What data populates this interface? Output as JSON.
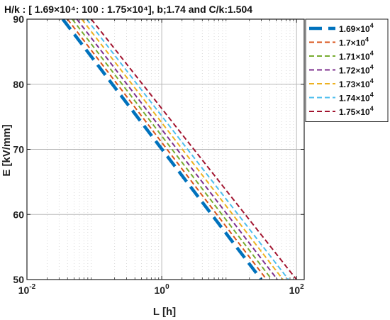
{
  "chart_data": {
    "type": "line",
    "title": "H/k : [ 1.69×10⁴: 100 : 1.75×10⁴],  b;1.74 and C/k:1.504",
    "xlabel": "L [h]",
    "ylabel": "E [kV/mm]",
    "xscale": "log",
    "xlim": [
      0.01,
      130
    ],
    "ylim": [
      50,
      90
    ],
    "x_ticks": [
      {
        "value": 0.01,
        "base": "10",
        "exp": "-2"
      },
      {
        "value": 1,
        "base": "10",
        "exp": "0"
      },
      {
        "value": 100,
        "base": "10",
        "exp": "2"
      }
    ],
    "y_ticks": [
      50,
      60,
      70,
      80,
      90
    ],
    "grid": true,
    "legend_position": "outside-top-right",
    "series": [
      {
        "name": "1.69×10⁴",
        "base": "1.69×10",
        "exp": "4",
        "color": "#0072BD",
        "width": 4.5,
        "dash": "18,9",
        "E": [
          90,
          50
        ],
        "L": [
          0.034,
          30.0
        ]
      },
      {
        "name": "1.7×10⁴",
        "base": "1.7×10",
        "exp": "4",
        "color": "#D95319",
        "width": 2,
        "dash": "7,4",
        "E": [
          90,
          50
        ],
        "L": [
          0.04,
          36.0
        ]
      },
      {
        "name": "1.71×10⁴",
        "base": "1.71×10",
        "exp": "4",
        "color": "#77AC30",
        "width": 2,
        "dash": "7,4",
        "E": [
          90,
          50
        ],
        "L": [
          0.047,
          43.0
        ]
      },
      {
        "name": "1.72×10⁴",
        "base": "1.72×10",
        "exp": "4",
        "color": "#7E2F8E",
        "width": 2,
        "dash": "7,4",
        "E": [
          90,
          50
        ],
        "L": [
          0.055,
          52.0
        ]
      },
      {
        "name": "1.73×10⁴",
        "base": "1.73×10",
        "exp": "4",
        "color": "#EDB120",
        "width": 2,
        "dash": "7,4",
        "E": [
          90,
          50
        ],
        "L": [
          0.065,
          63.0
        ]
      },
      {
        "name": "1.74×10⁴",
        "base": "1.74×10",
        "exp": "4",
        "color": "#4DBEEE",
        "width": 2,
        "dash": "7,4",
        "E": [
          90,
          50
        ],
        "L": [
          0.077,
          76.0
        ]
      },
      {
        "name": "1.75×10⁴",
        "base": "1.75×10",
        "exp": "4",
        "color": "#A2142F",
        "width": 2,
        "dash": "7,4",
        "E": [
          90,
          50
        ],
        "L": [
          0.09,
          100.0
        ]
      }
    ]
  }
}
